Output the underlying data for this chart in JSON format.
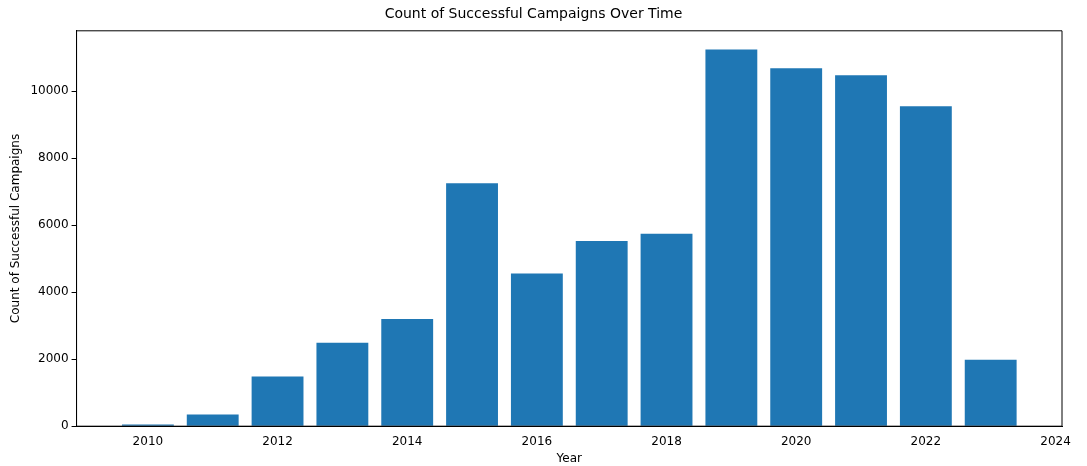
{
  "chart_data": {
    "type": "bar",
    "title": "Count of Successful Campaigns Over Time",
    "xlabel": "Year",
    "ylabel": "Count of Successful Campaigns",
    "x": [
      2010,
      2011,
      2012,
      2013,
      2014,
      2015,
      2016,
      2017,
      2018,
      2019,
      2020,
      2021,
      2022,
      2023
    ],
    "values": [
      50,
      350,
      1480,
      2490,
      3200,
      7250,
      4560,
      5530,
      5740,
      11240,
      10680,
      10470,
      9550,
      1980
    ],
    "color": "#1f77b4",
    "xlim": [
      2008.9,
      2024.1
    ],
    "xticks": [
      2010,
      2012,
      2014,
      2016,
      2018,
      2020,
      2022,
      2024
    ],
    "ylim": [
      0,
      11800
    ],
    "yticks": [
      0,
      2000,
      4000,
      6000,
      8000,
      10000
    ],
    "grid": false,
    "legend": false
  }
}
